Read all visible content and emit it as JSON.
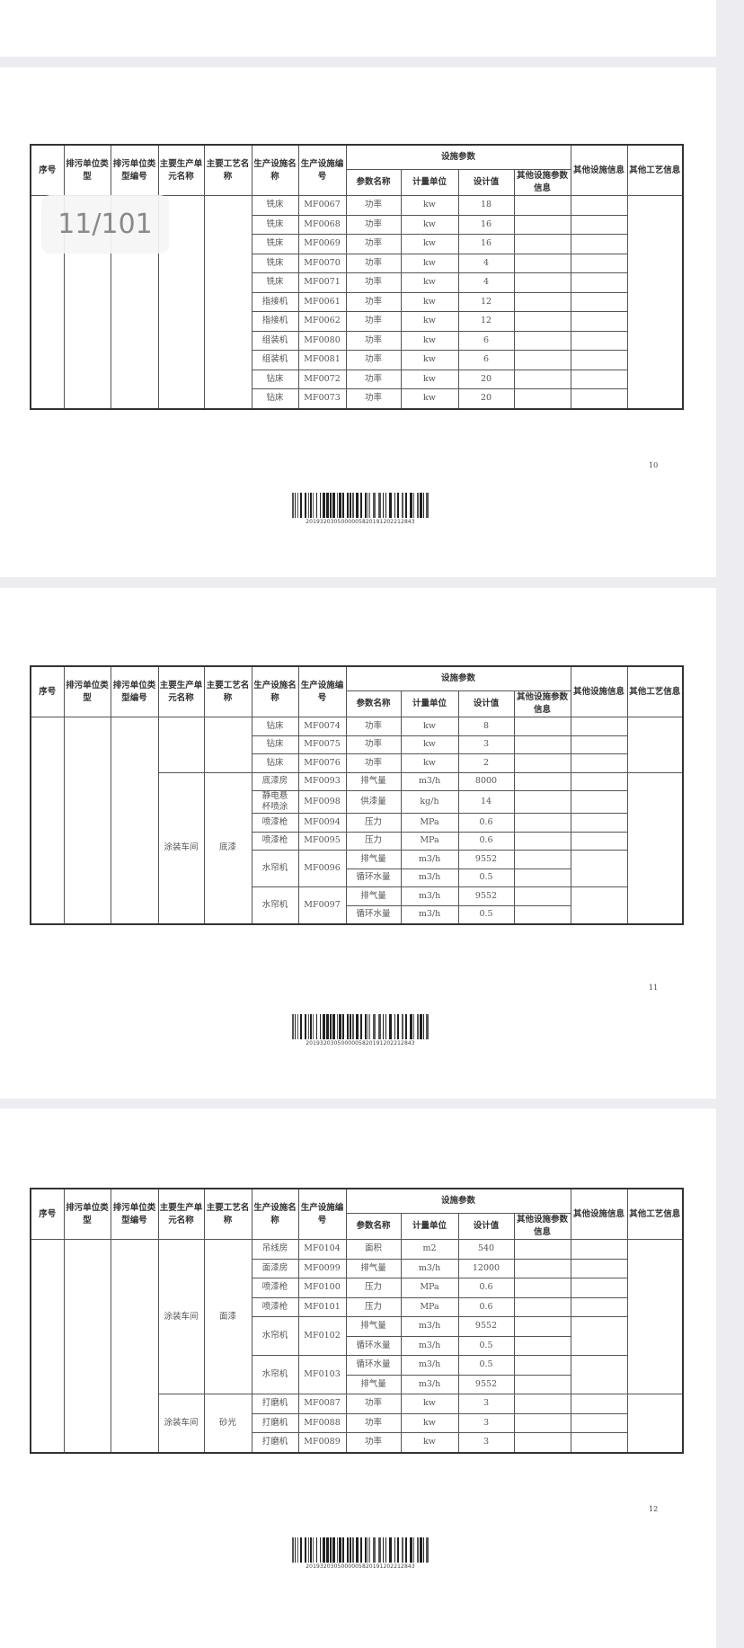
{
  "page_indicator": "11/101",
  "header": {
    "seq": "序号",
    "unit_type": "排污单位类型",
    "unit_type_code": "排污单位类型编号",
    "main_unit": "主要生产单元名称",
    "main_process": "主要工艺名称",
    "facility_name": "生产设施名称",
    "facility_code": "生产设施编号",
    "params_group": "设施参数",
    "param_name": "参数名称",
    "param_unit": "计量单位",
    "design_value": "设计值",
    "other_param_info": "其他设施参数信息",
    "other_facility_info": "其他设施信息",
    "other_process_info": "其他工艺信息"
  },
  "pages": [
    {
      "page_number": "10",
      "barcode": "20193203050000058201912022128​43",
      "groups": [
        {
          "unit": "",
          "process": "",
          "equipment": [
            {
              "name": "铣床",
              "code": "MF0067",
              "params": [
                {
                  "name": "功率",
                  "unit": "kw",
                  "value": "18"
                }
              ]
            },
            {
              "name": "铣床",
              "code": "MF0068",
              "params": [
                {
                  "name": "功率",
                  "unit": "kw",
                  "value": "16"
                }
              ]
            },
            {
              "name": "铣床",
              "code": "MF0069",
              "params": [
                {
                  "name": "功率",
                  "unit": "kw",
                  "value": "16"
                }
              ]
            },
            {
              "name": "铣床",
              "code": "MF0070",
              "params": [
                {
                  "name": "功率",
                  "unit": "kw",
                  "value": "4"
                }
              ]
            },
            {
              "name": "铣床",
              "code": "MF0071",
              "params": [
                {
                  "name": "功率",
                  "unit": "kw",
                  "value": "4"
                }
              ]
            },
            {
              "name": "指接机",
              "code": "MF0061",
              "params": [
                {
                  "name": "功率",
                  "unit": "kw",
                  "value": "12"
                }
              ]
            },
            {
              "name": "指接机",
              "code": "MF0062",
              "params": [
                {
                  "name": "功率",
                  "unit": "kw",
                  "value": "12"
                }
              ]
            },
            {
              "name": "组装机",
              "code": "MF0080",
              "params": [
                {
                  "name": "功率",
                  "unit": "kw",
                  "value": "6"
                }
              ]
            },
            {
              "name": "组装机",
              "code": "MF0081",
              "params": [
                {
                  "name": "功率",
                  "unit": "kw",
                  "value": "6"
                }
              ]
            },
            {
              "name": "钻床",
              "code": "MF0072",
              "params": [
                {
                  "name": "功率",
                  "unit": "kw",
                  "value": "20"
                }
              ]
            },
            {
              "name": "钻床",
              "code": "MF0073",
              "params": [
                {
                  "name": "功率",
                  "unit": "kw",
                  "value": "20"
                }
              ]
            }
          ]
        }
      ]
    },
    {
      "page_number": "11",
      "barcode": "2019320305000005820191202212843",
      "groups": [
        {
          "unit": "",
          "process": "",
          "equipment": [
            {
              "name": "钻床",
              "code": "MF0074",
              "params": [
                {
                  "name": "功率",
                  "unit": "kw",
                  "value": "8"
                }
              ]
            },
            {
              "name": "钻床",
              "code": "MF0075",
              "params": [
                {
                  "name": "功率",
                  "unit": "kw",
                  "value": "3"
                }
              ]
            },
            {
              "name": "钻床",
              "code": "MF0076",
              "params": [
                {
                  "name": "功率",
                  "unit": "kw",
                  "value": "2"
                }
              ]
            }
          ]
        },
        {
          "unit": "涂装车间",
          "process": "底漆",
          "equipment": [
            {
              "name": "底漆房",
              "code": "MF0093",
              "params": [
                {
                  "name": "排气量",
                  "unit": "m3/h",
                  "value": "8000"
                }
              ]
            },
            {
              "name": "静电悬杯喷涂",
              "code": "MF0098",
              "params": [
                {
                  "name": "供漆量",
                  "unit": "kg/h",
                  "value": "14"
                }
              ]
            },
            {
              "name": "喷漆枪",
              "code": "MF0094",
              "params": [
                {
                  "name": "压力",
                  "unit": "MPa",
                  "value": "0.6"
                }
              ]
            },
            {
              "name": "喷漆枪",
              "code": "MF0095",
              "params": [
                {
                  "name": "压力",
                  "unit": "MPa",
                  "value": "0.6"
                }
              ]
            },
            {
              "name": "水帘机",
              "code": "MF0096",
              "params": [
                {
                  "name": "排气量",
                  "unit": "m3/h",
                  "value": "9552"
                },
                {
                  "name": "循环水量",
                  "unit": "m3/h",
                  "value": "0.5"
                }
              ]
            },
            {
              "name": "水帘机",
              "code": "MF0097",
              "params": [
                {
                  "name": "排气量",
                  "unit": "m3/h",
                  "value": "9552"
                },
                {
                  "name": "循环水量",
                  "unit": "m3/h",
                  "value": "0.5"
                }
              ]
            }
          ]
        }
      ]
    },
    {
      "page_number": "12",
      "barcode": "2019320305000005820191202212843",
      "groups": [
        {
          "unit": "涂装车间",
          "process": "面漆",
          "equipment": [
            {
              "name": "吊线房",
              "code": "MF0104",
              "params": [
                {
                  "name": "面积",
                  "unit": "m2",
                  "value": "540"
                }
              ]
            },
            {
              "name": "面漆房",
              "code": "MF0099",
              "params": [
                {
                  "name": "排气量",
                  "unit": "m3/h",
                  "value": "12000"
                }
              ]
            },
            {
              "name": "喷漆枪",
              "code": "MF0100",
              "params": [
                {
                  "name": "压力",
                  "unit": "MPa",
                  "value": "0.6"
                }
              ]
            },
            {
              "name": "喷漆枪",
              "code": "MF0101",
              "params": [
                {
                  "name": "压力",
                  "unit": "MPa",
                  "value": "0.6"
                }
              ]
            },
            {
              "name": "水帘机",
              "code": "MF0102",
              "params": [
                {
                  "name": "排气量",
                  "unit": "m3/h",
                  "value": "9552"
                },
                {
                  "name": "循环水量",
                  "unit": "m3/h",
                  "value": "0.5"
                }
              ]
            },
            {
              "name": "水帘机",
              "code": "MF0103",
              "params": [
                {
                  "name": "循环水量",
                  "unit": "m3/h",
                  "value": "0.5"
                },
                {
                  "name": "排气量",
                  "unit": "m3/h",
                  "value": "9552"
                }
              ]
            }
          ]
        },
        {
          "unit": "涂装车间",
          "process": "砂光",
          "equipment": [
            {
              "name": "打磨机",
              "code": "MF0087",
              "params": [
                {
                  "name": "功率",
                  "unit": "kw",
                  "value": "3"
                }
              ]
            },
            {
              "name": "打磨机",
              "code": "MF0088",
              "params": [
                {
                  "name": "功率",
                  "unit": "kw",
                  "value": "3"
                }
              ]
            },
            {
              "name": "打磨机",
              "code": "MF0089",
              "params": [
                {
                  "name": "功率",
                  "unit": "kw",
                  "value": "3"
                }
              ]
            }
          ]
        }
      ]
    }
  ]
}
